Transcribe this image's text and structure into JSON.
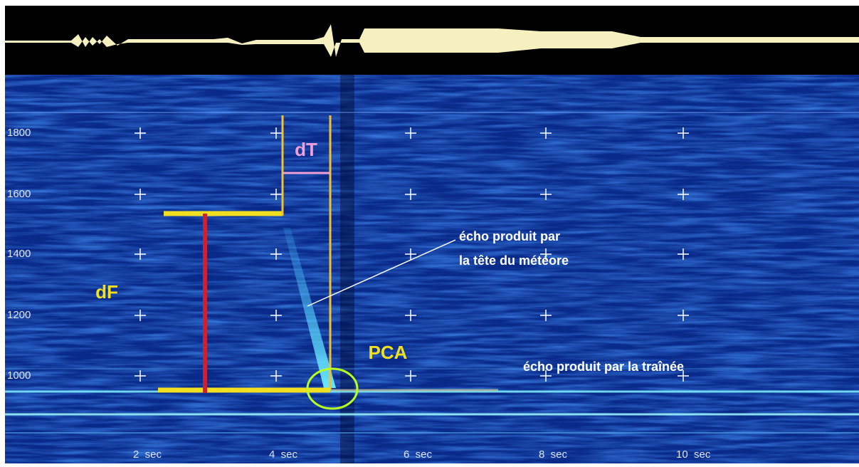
{
  "y_axis": {
    "labels": [
      "1800",
      "1600",
      "1400",
      "1200",
      "1000"
    ]
  },
  "x_axis": {
    "labels": [
      "2  sec",
      "4  sec",
      "6  sec",
      "8  sec",
      "10  sec"
    ]
  },
  "annotations": {
    "dT": "dT",
    "dF": "dF",
    "PCA": "PCA",
    "head_echo": [
      "écho produit par",
      "la tête du météore"
    ],
    "trail_echo": "écho produit par la traînée"
  }
}
